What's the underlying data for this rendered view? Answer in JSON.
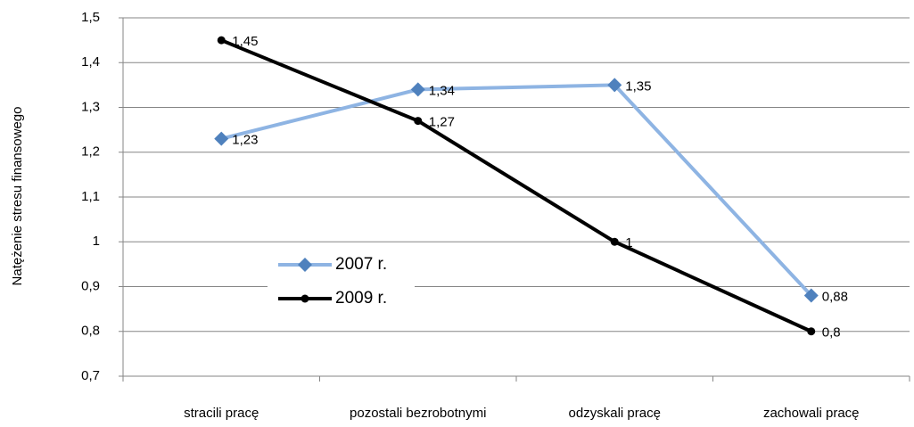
{
  "chart_data": {
    "type": "line",
    "y_label": "Natężenie stresu finansowego",
    "categories": [
      "stracili pracę",
      "pozostali bezrobotnymi",
      "odzyskali pracę",
      "zachowali pracę"
    ],
    "series": [
      {
        "name": "2007 r.",
        "color": "#8eb4e3",
        "marker_color": "#4f81bd",
        "marker": "diamond",
        "values": [
          1.23,
          1.34,
          1.35,
          0.88
        ],
        "value_labels": [
          "1,23",
          "1,34",
          "1,35",
          "0,88"
        ]
      },
      {
        "name": "2009 r.",
        "color": "#000000",
        "marker_color": "#000000",
        "marker": "circle",
        "values": [
          1.45,
          1.27,
          1,
          0.8
        ],
        "value_labels": [
          "1,45",
          "1,27",
          "1",
          "0,8"
        ]
      }
    ],
    "ylim": [
      0.7,
      1.5
    ],
    "yticks": [
      {
        "value": 0.7,
        "label": "0,7"
      },
      {
        "value": 0.8,
        "label": "0,8"
      },
      {
        "value": 0.9,
        "label": "0,9"
      },
      1,
      {
        "value": 1.1,
        "label": "1,1"
      },
      {
        "value": 1.2,
        "label": "1,2"
      },
      {
        "value": 1.3,
        "label": "1,3"
      },
      {
        "value": 1.4,
        "label": "1,4"
      },
      {
        "value": 1.5,
        "label": "1,5"
      }
    ],
    "grid": true
  }
}
